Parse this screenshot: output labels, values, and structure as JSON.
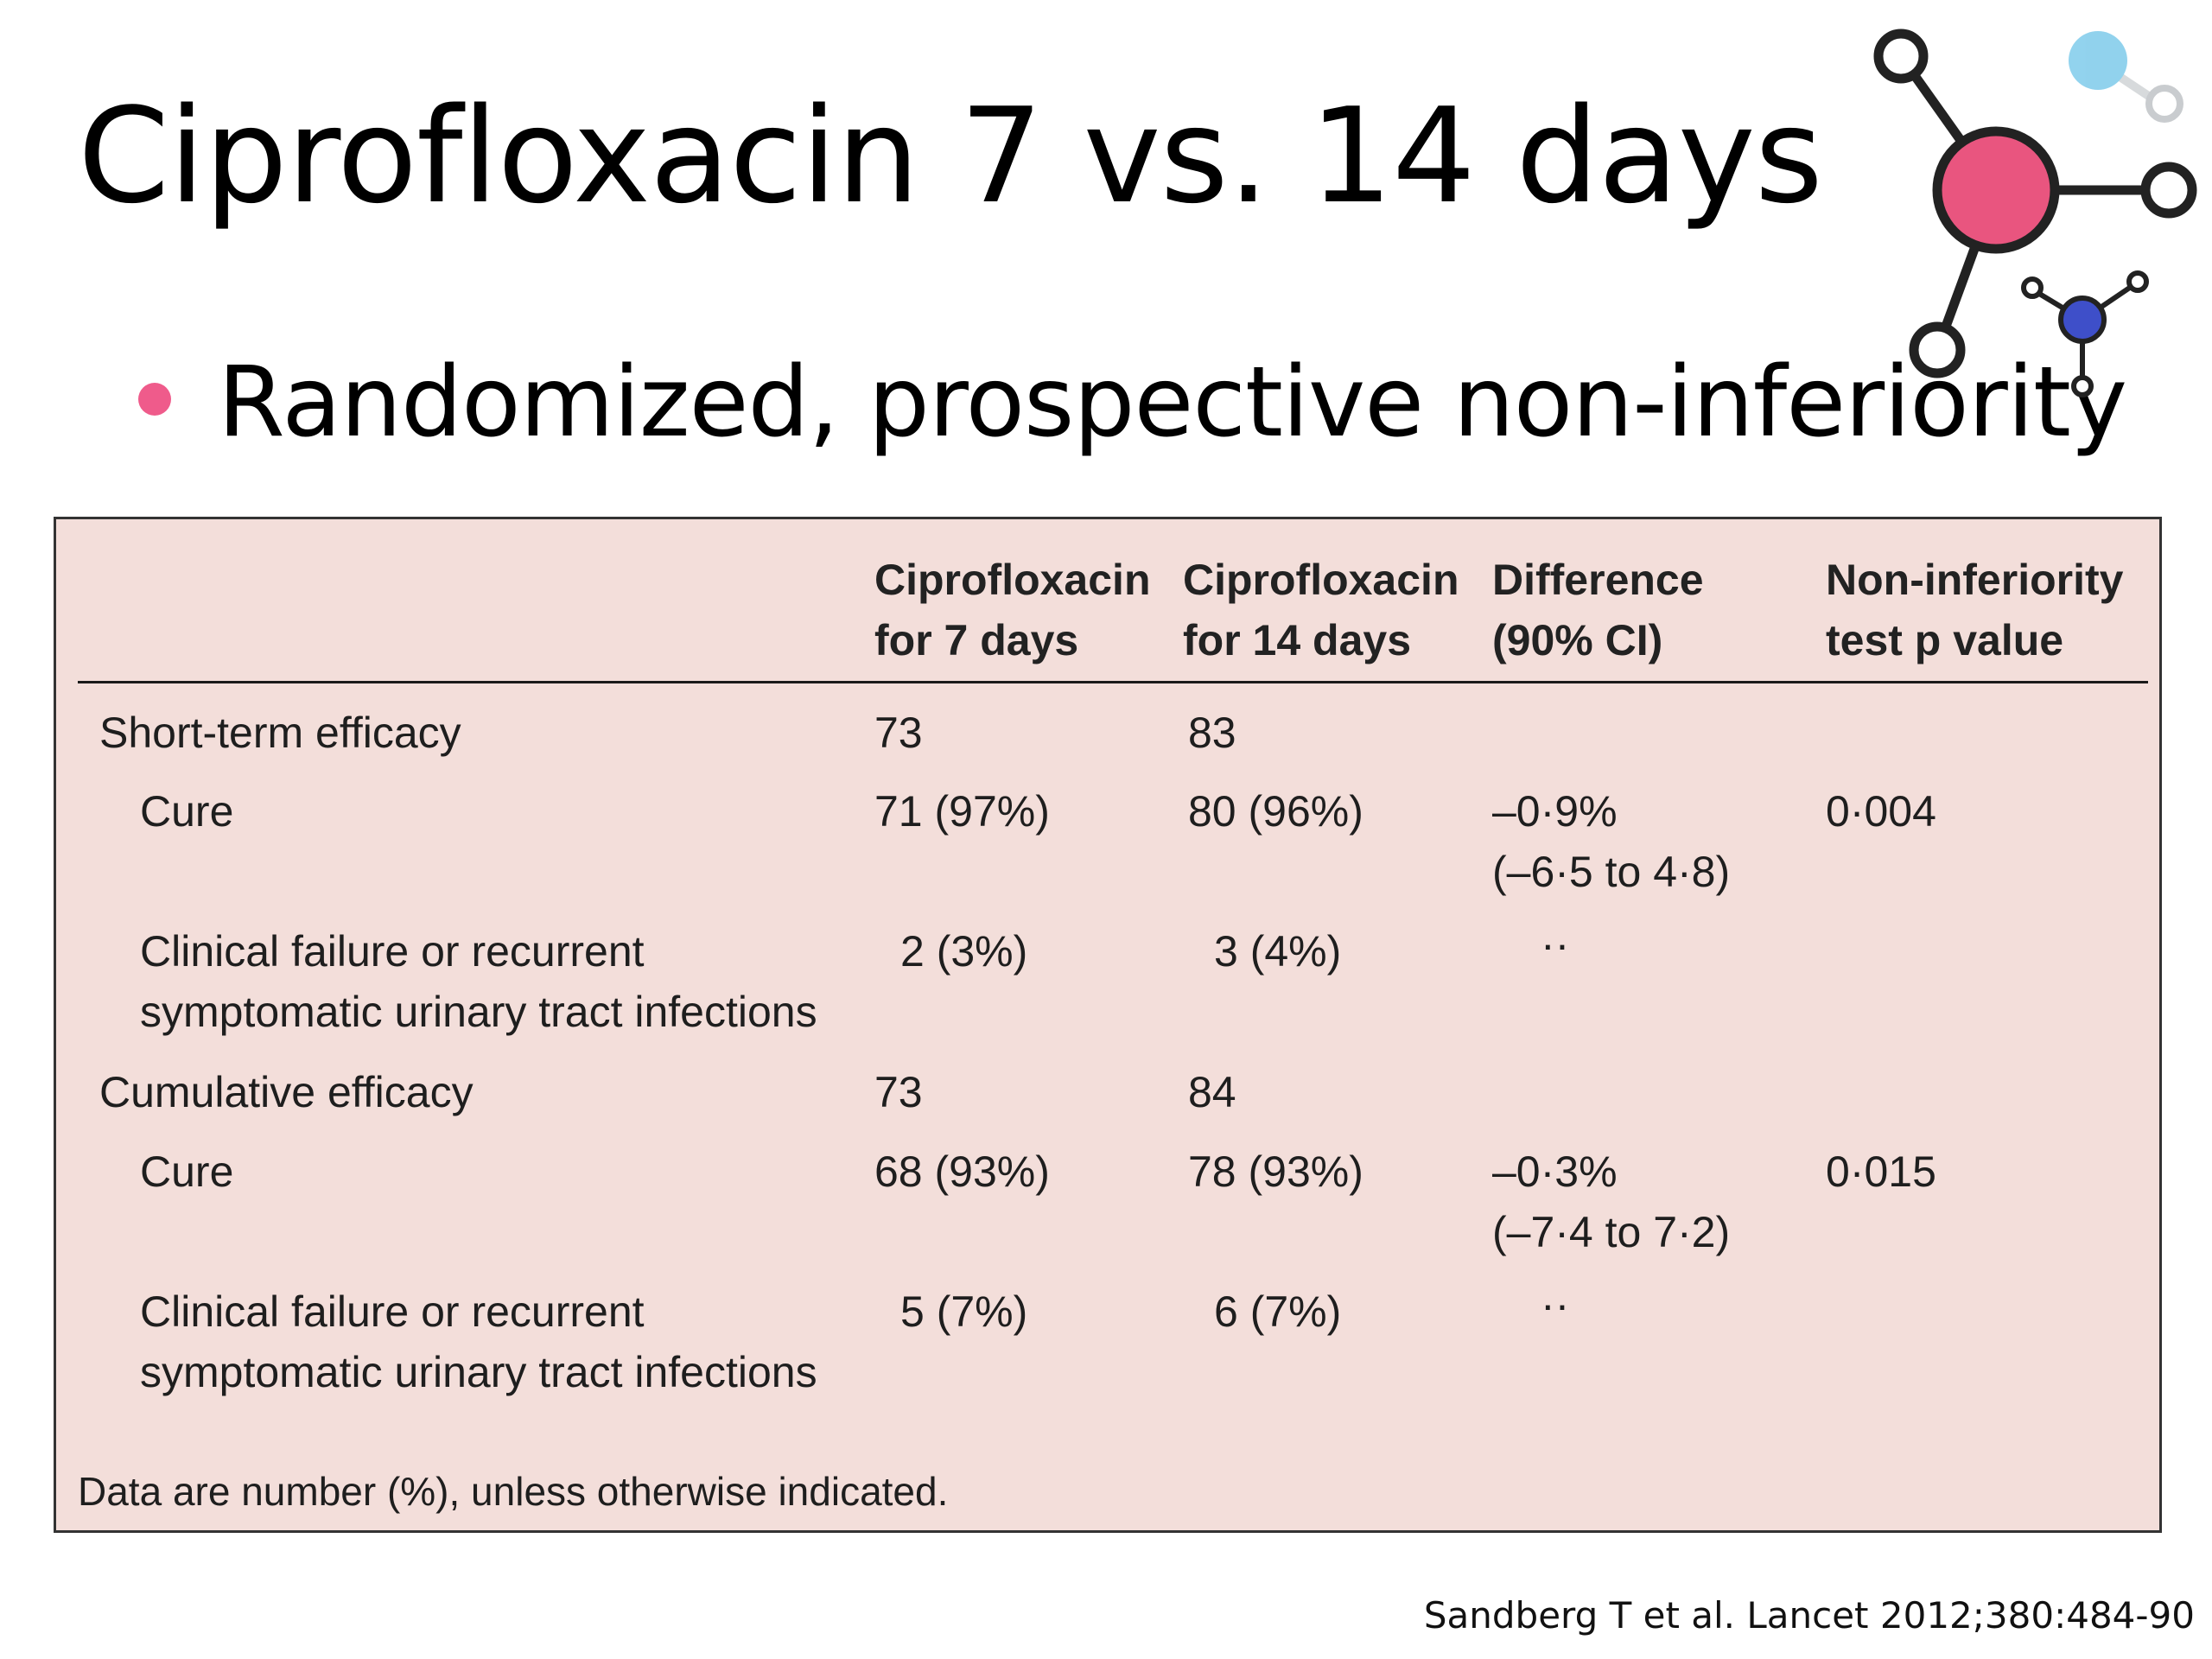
{
  "slide": {
    "title": "Ciprofloxacin 7 vs. 14 days",
    "bullet": "Randomized, prospective non-inferiority",
    "bullet_color": "#ef5b8b",
    "decoration_icon": "molecule-icon",
    "citation": "Sandberg T et al. Lancet 2012;380:484-90"
  },
  "table": {
    "background": "#f3deda",
    "headers": {
      "c1_line1": "Ciprofloxacin",
      "c1_line2": "for 7 days",
      "c2_line1": "Ciprofloxacin",
      "c2_line2": "for 14 days",
      "c3_line1": "Difference",
      "c3_line2": "(90% CI)",
      "c4_line1": "Non-inferiority",
      "c4_line2": "test p value"
    },
    "rows": [
      {
        "label": "Short-term efficacy",
        "c1": "73",
        "c2": "83"
      },
      {
        "label": "Cure",
        "c1": "71 (97%)",
        "c2": "80 (96%)",
        "c3_line1": "–0·9%",
        "c3_line2": "(–6·5 to 4·8)",
        "c4": "0·004"
      },
      {
        "label_line1": "Clinical failure or recurrent",
        "label_line2": "symptomatic urinary tract infections",
        "c1": "2 (3%)",
        "c2": "3 (4%)",
        "c3": "··"
      },
      {
        "label": "Cumulative efficacy",
        "c1": "73",
        "c2": "84"
      },
      {
        "label": "Cure",
        "c1": "68 (93%)",
        "c2": "78 (93%)",
        "c3_line1": "–0·3%",
        "c3_line2": "(–7·4 to 7·2)",
        "c4": "0·015"
      },
      {
        "label_line1": "Clinical failure or recurrent",
        "label_line2": "symptomatic urinary tract infections",
        "c1": "5 (7%)",
        "c2": "6 (7%)",
        "c3": "··"
      }
    ],
    "footnote": "Data are number (%), unless otherwise indicated."
  }
}
